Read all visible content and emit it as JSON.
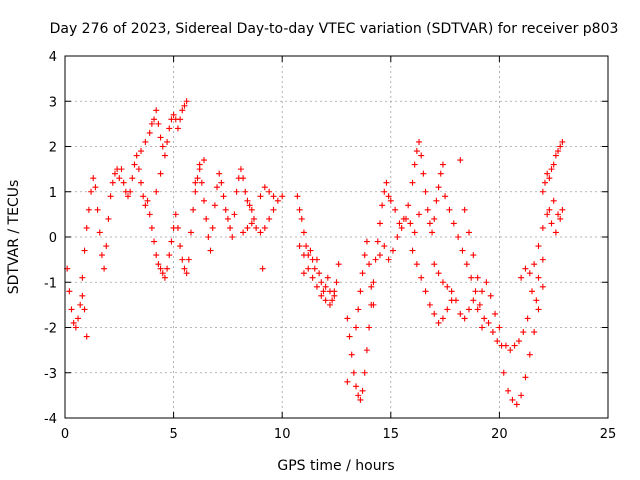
{
  "chart_data": {
    "type": "scatter",
    "title": "Day 276 of 2023, Sidereal Day-to-day VTEC variation (SDTVAR) for receiver p803",
    "xlabel": "GPS time / hours",
    "ylabel": "SDTVAR / TECUs",
    "xlim": [
      0,
      25
    ],
    "ylim": [
      -4,
      4
    ],
    "xticks": [
      "0",
      "5",
      "10",
      "15",
      "20",
      "25"
    ],
    "yticks": [
      "-4",
      "-3",
      "-2",
      "-1",
      "0",
      "1",
      "2",
      "3",
      "4"
    ],
    "grid": true,
    "marker": "+",
    "color": "#ff0000",
    "series": [
      {
        "name": "SDTVAR",
        "points": [
          [
            0.1,
            -0.7
          ],
          [
            0.2,
            -1.2
          ],
          [
            0.3,
            -1.6
          ],
          [
            0.4,
            -1.9
          ],
          [
            0.5,
            -2.0
          ],
          [
            0.6,
            -1.8
          ],
          [
            0.7,
            -1.5
          ],
          [
            0.8,
            -1.3
          ],
          [
            0.9,
            -1.6
          ],
          [
            1.0,
            -2.2
          ],
          [
            0.8,
            -0.9
          ],
          [
            0.9,
            -0.3
          ],
          [
            1.0,
            0.2
          ],
          [
            1.1,
            0.6
          ],
          [
            1.2,
            1.0
          ],
          [
            1.3,
            1.3
          ],
          [
            1.4,
            1.1
          ],
          [
            1.5,
            0.6
          ],
          [
            1.6,
            0.1
          ],
          [
            1.7,
            -0.4
          ],
          [
            1.8,
            -0.7
          ],
          [
            1.9,
            -0.2
          ],
          [
            2.0,
            0.4
          ],
          [
            2.1,
            0.9
          ],
          [
            2.2,
            1.2
          ],
          [
            2.3,
            1.4
          ],
          [
            2.4,
            1.5
          ],
          [
            2.5,
            1.3
          ],
          [
            2.6,
            1.5
          ],
          [
            2.7,
            1.2
          ],
          [
            2.8,
            1.0
          ],
          [
            2.9,
            0.9
          ],
          [
            3.0,
            1.0
          ],
          [
            3.1,
            1.3
          ],
          [
            3.2,
            1.6
          ],
          [
            3.3,
            1.8
          ],
          [
            3.4,
            1.5
          ],
          [
            3.5,
            1.2
          ],
          [
            3.6,
            0.9
          ],
          [
            3.7,
            0.7
          ],
          [
            3.5,
            1.9
          ],
          [
            3.7,
            2.1
          ],
          [
            3.9,
            2.3
          ],
          [
            4.0,
            2.5
          ],
          [
            4.1,
            2.6
          ],
          [
            4.2,
            2.8
          ],
          [
            4.3,
            2.5
          ],
          [
            4.4,
            2.2
          ],
          [
            4.5,
            2.0
          ],
          [
            4.6,
            1.8
          ],
          [
            4.7,
            2.1
          ],
          [
            4.8,
            2.4
          ],
          [
            4.9,
            2.6
          ],
          [
            5.0,
            2.7
          ],
          [
            5.1,
            2.6
          ],
          [
            5.2,
            2.4
          ],
          [
            5.3,
            2.6
          ],
          [
            5.4,
            2.8
          ],
          [
            5.5,
            2.9
          ],
          [
            5.6,
            3.0
          ],
          [
            3.8,
            0.8
          ],
          [
            3.9,
            0.5
          ],
          [
            4.0,
            0.2
          ],
          [
            4.1,
            -0.1
          ],
          [
            4.2,
            -0.4
          ],
          [
            4.3,
            -0.6
          ],
          [
            4.4,
            -0.7
          ],
          [
            4.5,
            -0.8
          ],
          [
            4.6,
            -0.9
          ],
          [
            4.7,
            -0.7
          ],
          [
            4.8,
            -0.4
          ],
          [
            4.9,
            -0.1
          ],
          [
            5.0,
            0.2
          ],
          [
            5.1,
            0.5
          ],
          [
            5.2,
            0.2
          ],
          [
            5.3,
            -0.2
          ],
          [
            5.4,
            -0.5
          ],
          [
            5.5,
            -0.7
          ],
          [
            5.6,
            -0.8
          ],
          [
            5.7,
            -0.5
          ],
          [
            5.8,
            0.1
          ],
          [
            5.9,
            0.6
          ],
          [
            6.0,
            1.0
          ],
          [
            6.1,
            1.3
          ],
          [
            6.2,
            1.5
          ],
          [
            6.3,
            1.2
          ],
          [
            6.4,
            0.8
          ],
          [
            6.5,
            0.4
          ],
          [
            6.6,
            0.0
          ],
          [
            6.7,
            -0.3
          ],
          [
            6.8,
            0.2
          ],
          [
            6.9,
            0.7
          ],
          [
            7.0,
            1.1
          ],
          [
            7.1,
            1.4
          ],
          [
            7.2,
            1.2
          ],
          [
            7.3,
            0.9
          ],
          [
            7.4,
            0.6
          ],
          [
            7.5,
            0.4
          ],
          [
            7.6,
            0.2
          ],
          [
            7.7,
            0.0
          ],
          [
            7.8,
            0.5
          ],
          [
            7.9,
            1.0
          ],
          [
            8.0,
            1.3
          ],
          [
            8.1,
            1.5
          ],
          [
            8.2,
            1.3
          ],
          [
            8.3,
            1.0
          ],
          [
            8.4,
            0.8
          ],
          [
            8.5,
            0.7
          ],
          [
            8.6,
            0.6
          ],
          [
            8.7,
            0.4
          ],
          [
            8.2,
            0.1
          ],
          [
            8.4,
            0.2
          ],
          [
            8.6,
            0.3
          ],
          [
            8.8,
            0.2
          ],
          [
            9.0,
            0.1
          ],
          [
            9.2,
            0.2
          ],
          [
            9.4,
            0.4
          ],
          [
            9.6,
            0.6
          ],
          [
            9.8,
            0.8
          ],
          [
            10.0,
            0.9
          ],
          [
            9.0,
            0.9
          ],
          [
            9.2,
            1.1
          ],
          [
            9.4,
            1.0
          ],
          [
            9.6,
            0.9
          ],
          [
            9.1,
            -0.7
          ],
          [
            6.0,
            1.2
          ],
          [
            6.2,
            1.6
          ],
          [
            6.4,
            1.7
          ],
          [
            4.2,
            1.0
          ],
          [
            4.4,
            1.4
          ],
          [
            10.7,
            0.9
          ],
          [
            10.8,
            0.6
          ],
          [
            10.9,
            0.4
          ],
          [
            11.0,
            0.1
          ],
          [
            11.1,
            -0.2
          ],
          [
            11.2,
            -0.4
          ],
          [
            11.3,
            -0.3
          ],
          [
            11.4,
            -0.5
          ],
          [
            11.5,
            -0.7
          ],
          [
            11.6,
            -0.5
          ],
          [
            11.7,
            -0.8
          ],
          [
            11.8,
            -1.0
          ],
          [
            11.9,
            -1.2
          ],
          [
            12.0,
            -1.1
          ],
          [
            12.1,
            -0.9
          ],
          [
            12.2,
            -1.2
          ],
          [
            12.3,
            -1.4
          ],
          [
            12.4,
            -1.3
          ],
          [
            12.5,
            -1.0
          ],
          [
            12.6,
            -0.6
          ],
          [
            10.8,
            -0.2
          ],
          [
            11.0,
            -0.4
          ],
          [
            11.2,
            -0.7
          ],
          [
            11.4,
            -0.9
          ],
          [
            11.6,
            -1.1
          ],
          [
            11.8,
            -1.3
          ],
          [
            12.0,
            -1.4
          ],
          [
            12.2,
            -1.5
          ],
          [
            12.4,
            -1.2
          ],
          [
            11.0,
            -0.8
          ],
          [
            13.0,
            -1.8
          ],
          [
            13.1,
            -2.2
          ],
          [
            13.2,
            -2.6
          ],
          [
            13.3,
            -3.0
          ],
          [
            13.4,
            -3.3
          ],
          [
            13.5,
            -3.5
          ],
          [
            13.6,
            -3.6
          ],
          [
            13.7,
            -3.4
          ],
          [
            13.8,
            -3.0
          ],
          [
            13.9,
            -2.5
          ],
          [
            14.0,
            -2.0
          ],
          [
            14.1,
            -1.5
          ],
          [
            14.2,
            -1.0
          ],
          [
            14.3,
            -0.5
          ],
          [
            14.4,
            -0.1
          ],
          [
            14.5,
            0.3
          ],
          [
            14.6,
            0.7
          ],
          [
            14.7,
            1.0
          ],
          [
            14.8,
            1.2
          ],
          [
            14.9,
            0.9
          ],
          [
            13.4,
            -2.0
          ],
          [
            13.5,
            -1.6
          ],
          [
            13.6,
            -1.2
          ],
          [
            13.7,
            -0.8
          ],
          [
            13.8,
            -0.4
          ],
          [
            13.9,
            -0.1
          ],
          [
            14.0,
            -0.6
          ],
          [
            14.1,
            -1.1
          ],
          [
            14.2,
            -1.5
          ],
          [
            13.0,
            -3.2
          ],
          [
            14.5,
            -0.4
          ],
          [
            14.7,
            -0.2
          ],
          [
            14.9,
            -0.5
          ],
          [
            15.1,
            -0.3
          ],
          [
            15.3,
            0.0
          ],
          [
            15.5,
            0.2
          ],
          [
            15.7,
            0.4
          ],
          [
            15.9,
            0.3
          ],
          [
            16.1,
            0.1
          ],
          [
            16.3,
            0.5
          ],
          [
            15.0,
            0.8
          ],
          [
            15.2,
            0.6
          ],
          [
            15.4,
            0.3
          ],
          [
            15.6,
            0.4
          ],
          [
            15.8,
            0.7
          ],
          [
            16.0,
            1.2
          ],
          [
            16.1,
            1.6
          ],
          [
            16.2,
            1.9
          ],
          [
            16.3,
            2.1
          ],
          [
            16.4,
            1.8
          ],
          [
            16.5,
            1.4
          ],
          [
            16.6,
            1.0
          ],
          [
            16.7,
            0.6
          ],
          [
            16.8,
            0.3
          ],
          [
            16.9,
            0.1
          ],
          [
            17.0,
            0.4
          ],
          [
            17.1,
            0.8
          ],
          [
            17.2,
            1.1
          ],
          [
            17.3,
            1.4
          ],
          [
            17.4,
            1.6
          ],
          [
            16.0,
            -0.3
          ],
          [
            16.2,
            -0.6
          ],
          [
            16.4,
            -0.9
          ],
          [
            16.6,
            -1.2
          ],
          [
            16.8,
            -1.5
          ],
          [
            17.0,
            -1.7
          ],
          [
            17.2,
            -1.9
          ],
          [
            17.4,
            -1.8
          ],
          [
            17.6,
            -1.6
          ],
          [
            17.8,
            -1.4
          ],
          [
            17.0,
            -0.6
          ],
          [
            17.2,
            -0.8
          ],
          [
            17.4,
            -1.0
          ],
          [
            17.6,
            -1.1
          ],
          [
            17.8,
            -1.2
          ],
          [
            18.0,
            -1.4
          ],
          [
            18.2,
            -1.7
          ],
          [
            18.4,
            -1.8
          ],
          [
            18.6,
            -1.6
          ],
          [
            18.8,
            -1.4
          ],
          [
            17.5,
            0.9
          ],
          [
            17.7,
            0.6
          ],
          [
            17.9,
            0.3
          ],
          [
            18.1,
            0.0
          ],
          [
            18.3,
            -0.3
          ],
          [
            18.5,
            -0.6
          ],
          [
            18.7,
            -0.9
          ],
          [
            18.9,
            -1.2
          ],
          [
            19.1,
            -1.5
          ],
          [
            19.3,
            -1.8
          ],
          [
            18.2,
            1.7
          ],
          [
            18.4,
            0.6
          ],
          [
            18.6,
            0.1
          ],
          [
            18.8,
            -0.4
          ],
          [
            19.0,
            -0.9
          ],
          [
            19.2,
            -1.2
          ],
          [
            19.4,
            -1.0
          ],
          [
            19.6,
            -1.3
          ],
          [
            19.8,
            -1.7
          ],
          [
            20.0,
            -2.0
          ],
          [
            19.5,
            -1.9
          ],
          [
            19.7,
            -2.1
          ],
          [
            19.9,
            -2.3
          ],
          [
            20.1,
            -2.4
          ],
          [
            20.3,
            -2.4
          ],
          [
            20.5,
            -2.5
          ],
          [
            20.7,
            -2.4
          ],
          [
            20.9,
            -2.3
          ],
          [
            21.1,
            -2.1
          ],
          [
            21.3,
            -1.8
          ],
          [
            20.2,
            -3.0
          ],
          [
            20.4,
            -3.4
          ],
          [
            20.6,
            -3.6
          ],
          [
            20.8,
            -3.7
          ],
          [
            21.0,
            -3.5
          ],
          [
            21.2,
            -3.1
          ],
          [
            21.4,
            -2.6
          ],
          [
            21.6,
            -2.1
          ],
          [
            21.8,
            -1.6
          ],
          [
            22.0,
            -1.1
          ],
          [
            21.0,
            -0.9
          ],
          [
            21.2,
            -0.7
          ],
          [
            21.4,
            -0.8
          ],
          [
            21.6,
            -0.6
          ],
          [
            21.8,
            -0.2
          ],
          [
            22.0,
            0.2
          ],
          [
            22.2,
            0.5
          ],
          [
            22.4,
            0.3
          ],
          [
            22.6,
            0.1
          ],
          [
            22.8,
            0.4
          ],
          [
            22.0,
            1.0
          ],
          [
            22.1,
            1.2
          ],
          [
            22.2,
            1.4
          ],
          [
            22.3,
            1.3
          ],
          [
            22.4,
            1.5
          ],
          [
            22.5,
            1.6
          ],
          [
            22.6,
            1.8
          ],
          [
            22.7,
            1.9
          ],
          [
            22.8,
            2.0
          ],
          [
            22.9,
            2.1
          ],
          [
            22.3,
            0.6
          ],
          [
            22.5,
            0.8
          ],
          [
            22.7,
            0.5
          ],
          [
            22.9,
            0.6
          ],
          [
            21.8,
            -0.9
          ],
          [
            22.0,
            -0.5
          ],
          [
            21.5,
            -1.2
          ],
          [
            21.7,
            -1.4
          ],
          [
            19.0,
            -1.6
          ],
          [
            19.2,
            -2.0
          ]
        ]
      }
    ]
  }
}
